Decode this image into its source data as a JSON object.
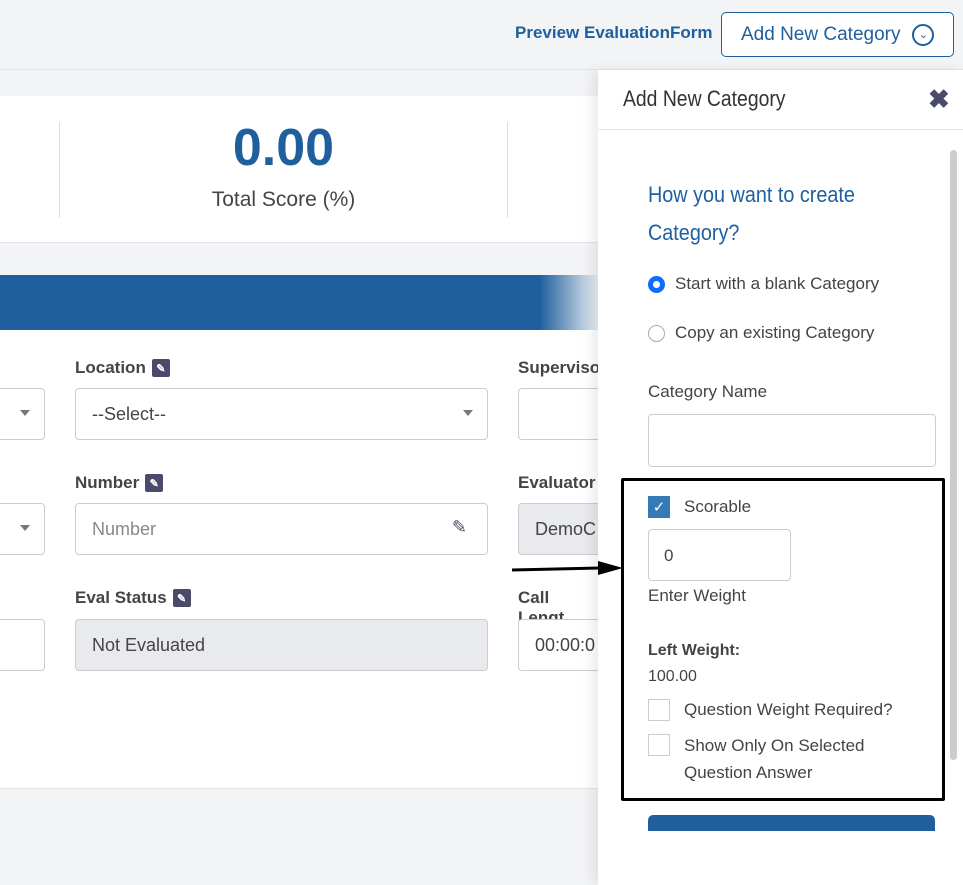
{
  "header": {
    "preview_link": "Preview EvaluationForm",
    "add_button": "Add New Category"
  },
  "score": {
    "value": "0.00",
    "label": "Total Score (%)"
  },
  "form": {
    "location": {
      "label": "Location",
      "value": "--Select--"
    },
    "supervisor": {
      "label": "Superviso"
    },
    "number": {
      "label": "Number",
      "placeholder": "Number"
    },
    "evaluator": {
      "label": "Evaluator",
      "value": "DemoC"
    },
    "eval_status": {
      "label": "Eval Status",
      "value": "Not Evaluated"
    },
    "call_length": {
      "label": "Call Lengt",
      "value": "00:00:0"
    }
  },
  "panel": {
    "title": "Add New Category",
    "question": "How you want to create Category?",
    "options": [
      {
        "label": "Start with a blank Category",
        "selected": true
      },
      {
        "label": "Copy an existing Category",
        "selected": false
      }
    ],
    "category_name_label": "Category Name",
    "category_name_value": "",
    "scorable": {
      "label": "Scorable",
      "checked": true
    },
    "weight_value": "0",
    "weight_label": "Enter Weight",
    "left_weight_label": "Left Weight:",
    "left_weight_value": "100.00",
    "question_weight_required": {
      "label": "Question Weight Required?",
      "checked": false
    },
    "show_only": {
      "label": "Show Only On Selected Question Answer",
      "checked": false
    }
  },
  "colors": {
    "brand": "#1f5f9e",
    "checkbox": "#337ab7",
    "radio": "#0d6efd"
  }
}
